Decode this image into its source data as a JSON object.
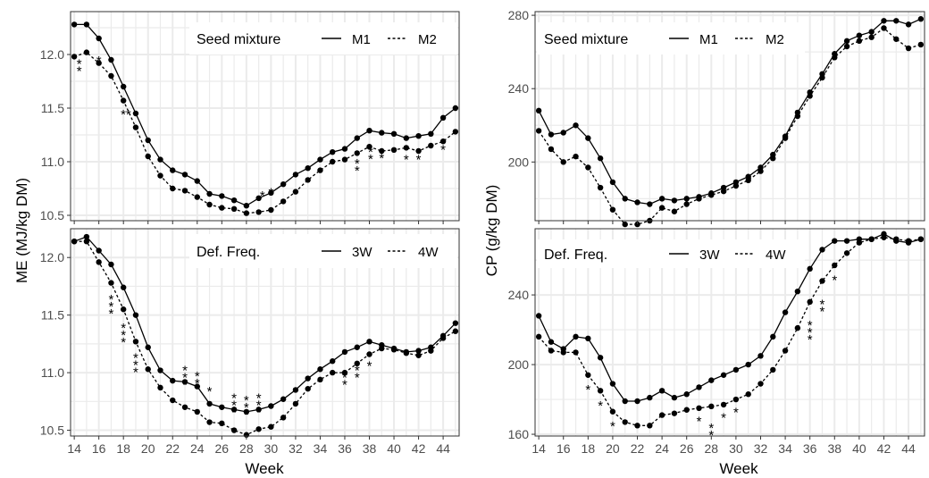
{
  "chart_data": [
    {
      "type": "line",
      "panel": "top-left",
      "legend": {
        "title": "Seed mixture",
        "placement": "top-right"
      },
      "ylim": [
        10.45,
        12.4
      ],
      "xlim": [
        13.7,
        45.3
      ],
      "yticks": [
        10.5,
        11.0,
        11.5,
        12.0
      ],
      "ytick_labels": [
        "10.5",
        "11.0",
        "11.5",
        "12.0"
      ],
      "x": [
        14,
        15,
        16,
        17,
        18,
        19,
        20,
        21,
        22,
        23,
        24,
        25,
        26,
        27,
        28,
        29,
        30,
        31,
        32,
        33,
        34,
        35,
        36,
        37,
        38,
        39,
        40,
        41,
        42,
        43,
        44,
        45
      ],
      "series": [
        {
          "name": "M1",
          "style": "solid",
          "values": [
            12.28,
            12.28,
            12.15,
            11.95,
            11.7,
            11.45,
            11.2,
            11.02,
            10.92,
            10.88,
            10.82,
            10.7,
            10.68,
            10.64,
            10.59,
            10.66,
            10.71,
            10.79,
            10.88,
            10.94,
            11.02,
            11.09,
            11.12,
            11.22,
            11.29,
            11.27,
            11.26,
            11.22,
            11.24,
            11.26,
            11.41,
            11.5
          ]
        },
        {
          "name": "M2",
          "style": "dashed",
          "values": [
            11.98,
            12.02,
            11.92,
            11.8,
            11.57,
            11.32,
            11.05,
            10.87,
            10.75,
            10.73,
            10.67,
            10.6,
            10.57,
            10.56,
            10.52,
            10.53,
            10.55,
            10.63,
            10.72,
            10.83,
            10.92,
            11.0,
            11.02,
            11.08,
            11.14,
            11.1,
            11.11,
            11.13,
            11.1,
            11.15,
            11.19,
            11.28
          ]
        }
      ],
      "annotations": [
        {
          "x": 14.4,
          "y": 11.87,
          "text": "*\n*"
        },
        {
          "x": 16.0,
          "y": 11.9,
          "text": "*"
        },
        {
          "x": 17.0,
          "y": 11.74,
          "text": "*"
        },
        {
          "x": 18.2,
          "y": 11.4,
          "text": "**"
        },
        {
          "x": 29.3,
          "y": 10.64,
          "text": "*"
        },
        {
          "x": 30.0,
          "y": 10.67,
          "text": "*"
        },
        {
          "x": 37.0,
          "y": 10.94,
          "text": "*\n*"
        },
        {
          "x": 38.1,
          "y": 11.05,
          "text": "*\n*"
        },
        {
          "x": 39.0,
          "y": 10.99,
          "text": "*"
        },
        {
          "x": 41.0,
          "y": 10.98,
          "text": "*"
        },
        {
          "x": 42.0,
          "y": 10.98,
          "text": "*"
        },
        {
          "x": 44.0,
          "y": 11.07,
          "text": "*"
        }
      ]
    },
    {
      "type": "line",
      "panel": "top-right",
      "legend": {
        "title": "Seed mixture",
        "placement": "top"
      },
      "ylim": [
        168,
        282
      ],
      "xlim": [
        13.7,
        45.3
      ],
      "yticks": [
        200,
        240,
        280
      ],
      "ytick_labels": [
        "200",
        "240",
        "280"
      ],
      "x": [
        14,
        15,
        16,
        17,
        18,
        19,
        20,
        21,
        22,
        23,
        24,
        25,
        26,
        27,
        28,
        29,
        30,
        31,
        32,
        33,
        34,
        35,
        36,
        37,
        38,
        39,
        40,
        41,
        42,
        43,
        44,
        45
      ],
      "series": [
        {
          "name": "M1",
          "style": "solid",
          "values": [
            228,
            215,
            216,
            220,
            213,
            202,
            189,
            180,
            178,
            177,
            180,
            179,
            180,
            181,
            183,
            186,
            189,
            192,
            197,
            204,
            214,
            227,
            238,
            248,
            259,
            266,
            269,
            271,
            277,
            277,
            275,
            278
          ]
        },
        {
          "name": "M2",
          "style": "dashed",
          "values": [
            217,
            207,
            200,
            203,
            197,
            186,
            174,
            166,
            166,
            168,
            175,
            173,
            177,
            180,
            182,
            184,
            187,
            190,
            195,
            202,
            213,
            225,
            236,
            246,
            257,
            263,
            266,
            268,
            273,
            267,
            262,
            264
          ]
        }
      ],
      "annotations": []
    },
    {
      "type": "line",
      "panel": "bottom-left",
      "legend": {
        "title": "Def. Freq.",
        "placement": "top-right"
      },
      "ylim": [
        10.45,
        12.25
      ],
      "xlim": [
        13.7,
        45.3
      ],
      "yticks": [
        10.5,
        11.0,
        11.5,
        12.0
      ],
      "ytick_labels": [
        "10.5",
        "11.0",
        "11.5",
        "12.0"
      ],
      "x": [
        14,
        15,
        16,
        17,
        18,
        19,
        20,
        21,
        22,
        23,
        24,
        25,
        26,
        27,
        28,
        29,
        30,
        31,
        32,
        33,
        34,
        35,
        36,
        37,
        38,
        39,
        40,
        41,
        42,
        43,
        44,
        45
      ],
      "series": [
        {
          "name": "3W",
          "style": "solid",
          "values": [
            12.14,
            12.18,
            12.06,
            11.94,
            11.74,
            11.5,
            11.22,
            11.02,
            10.93,
            10.92,
            10.88,
            10.73,
            10.7,
            10.68,
            10.66,
            10.68,
            10.71,
            10.77,
            10.85,
            10.95,
            11.03,
            11.1,
            11.18,
            11.22,
            11.27,
            11.24,
            11.21,
            11.18,
            11.19,
            11.22,
            11.32,
            11.43
          ]
        },
        {
          "name": "4W",
          "style": "dashed",
          "values": [
            12.14,
            12.14,
            11.96,
            11.78,
            11.55,
            11.27,
            11.03,
            10.87,
            10.76,
            10.7,
            10.66,
            10.57,
            10.56,
            10.5,
            10.46,
            10.51,
            10.53,
            10.61,
            10.73,
            10.86,
            10.94,
            11.0,
            11.0,
            11.08,
            11.16,
            11.21,
            11.2,
            11.17,
            11.15,
            11.19,
            11.3,
            11.36
          ]
        }
      ],
      "annotations": [
        {
          "x": 17.0,
          "y": 11.6,
          "text": "*\n*\n*"
        },
        {
          "x": 18.0,
          "y": 11.35,
          "text": "*\n*\n*"
        },
        {
          "x": 19.0,
          "y": 11.09,
          "text": "*\n*\n*"
        },
        {
          "x": 23.0,
          "y": 10.98,
          "text": "*\n*\n*"
        },
        {
          "x": 24.0,
          "y": 10.93,
          "text": "*\n*"
        },
        {
          "x": 25.0,
          "y": 10.8,
          "text": "*"
        },
        {
          "x": 27.0,
          "y": 10.74,
          "text": "*\n*\n*"
        },
        {
          "x": 28.0,
          "y": 10.72,
          "text": "*\n*\n*"
        },
        {
          "x": 29.0,
          "y": 10.74,
          "text": "*\n*\n*"
        },
        {
          "x": 36.0,
          "y": 10.92,
          "text": "*\n*"
        },
        {
          "x": 37.0,
          "y": 10.98,
          "text": "*\n*"
        },
        {
          "x": 38.0,
          "y": 11.02,
          "text": "*"
        }
      ]
    },
    {
      "type": "line",
      "panel": "bottom-right",
      "legend": {
        "title": "Def. Freq.",
        "placement": "top"
      },
      "ylim": [
        159,
        278
      ],
      "xlim": [
        13.7,
        45.3
      ],
      "yticks": [
        160,
        200,
        240
      ],
      "ytick_labels": [
        "160",
        "200",
        "240"
      ],
      "x": [
        14,
        15,
        16,
        17,
        18,
        19,
        20,
        21,
        22,
        23,
        24,
        25,
        26,
        27,
        28,
        29,
        30,
        31,
        32,
        33,
        34,
        35,
        36,
        37,
        38,
        39,
        40,
        41,
        42,
        43,
        44,
        45
      ],
      "series": [
        {
          "name": "3W",
          "style": "solid",
          "values": [
            228,
            213,
            209,
            216,
            215,
            204,
            189,
            179,
            179,
            181,
            185,
            181,
            183,
            187,
            191,
            194,
            197,
            200,
            205,
            216,
            230,
            242,
            255,
            266,
            271,
            271,
            272,
            272,
            275,
            271,
            270,
            272
          ]
        },
        {
          "name": "4W",
          "style": "dashed",
          "values": [
            216,
            208,
            207,
            207,
            194,
            185,
            173,
            167,
            165,
            165,
            171,
            172,
            174,
            175,
            176,
            177,
            180,
            183,
            189,
            197,
            208,
            221,
            236,
            248,
            257,
            264,
            270,
            272,
            273,
            272,
            271,
            272
          ]
        }
      ],
      "annotations": [
        {
          "x": 18.0,
          "y": 183,
          "text": "*"
        },
        {
          "x": 19.0,
          "y": 174,
          "text": "*"
        },
        {
          "x": 20.0,
          "y": 162,
          "text": "*"
        },
        {
          "x": 27.0,
          "y": 165,
          "text": "*"
        },
        {
          "x": 28.0,
          "y": 161,
          "text": "*\n*"
        },
        {
          "x": 29.0,
          "y": 167,
          "text": "*"
        },
        {
          "x": 30.0,
          "y": 170,
          "text": "*"
        },
        {
          "x": 36.0,
          "y": 220,
          "text": "*\n*\n*"
        },
        {
          "x": 37.0,
          "y": 232,
          "text": "*\n*"
        },
        {
          "x": 38.0,
          "y": 246,
          "text": "*"
        }
      ]
    }
  ],
  "shared": {
    "xlabel": "Week",
    "xticks": [
      14,
      16,
      18,
      20,
      22,
      24,
      26,
      28,
      30,
      32,
      34,
      36,
      38,
      40,
      42,
      44
    ],
    "xtick_labels": [
      "14",
      "16",
      "18",
      "20",
      "22",
      "24",
      "26",
      "28",
      "30",
      "32",
      "34",
      "36",
      "38",
      "40",
      "42",
      "44"
    ],
    "ylabel_left": "ME (MJ/kg DM)",
    "ylabel_right": "CP (g/kg DM)",
    "grid": true,
    "colors": {
      "line": "#000000",
      "grid": "#ebebeb",
      "frame": "#333333",
      "tick_text": "#4d4d4d"
    }
  }
}
